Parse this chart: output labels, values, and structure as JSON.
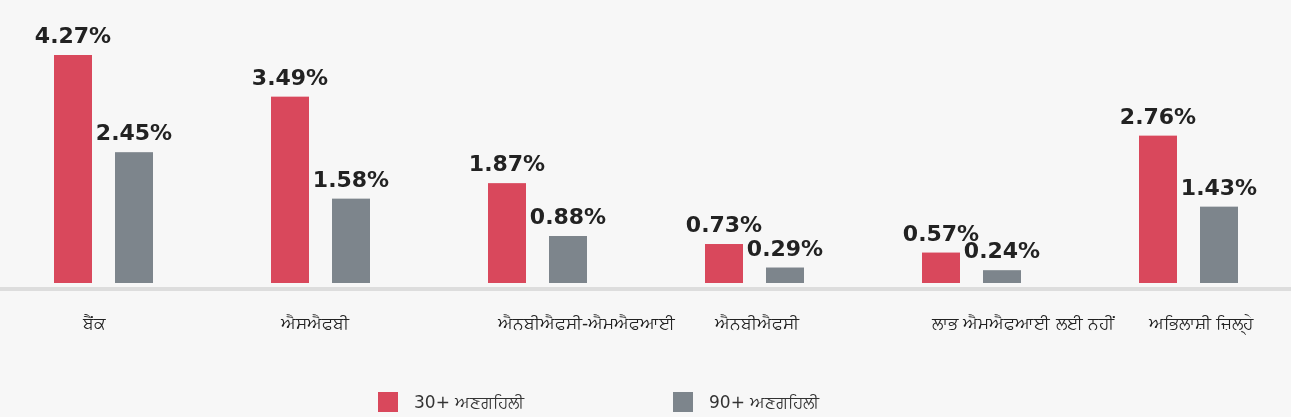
{
  "chart_data": {
    "type": "bar",
    "categories": [
      "ਬੈਂਕ",
      "ਐਸਐਫਬੀ",
      "ਐਨਬੀਐਫਸੀ-ਐਮਐਫਆਈ",
      "ਐਨਬੀਐਫਸੀ",
      "ਲਾਭ ਐਮਐਫਆਈ ਲਈ ਨਹੀਂ",
      "ਅਭਿਲਾਸ਼ੀ ਜ਼ਿਲ੍ਹੇ"
    ],
    "series": [
      {
        "name": "30+ ਅਣਗਹਿਲੀ",
        "color": "#d9485c",
        "values": [
          4.27,
          3.49,
          1.87,
          0.73,
          0.57,
          2.76
        ],
        "value_labels": [
          "4.27%",
          "3.49%",
          "1.87%",
          "0.73%",
          "0.57%",
          "2.76%"
        ]
      },
      {
        "name": "90+ ਅਣਗਹਿਲੀ",
        "color": "#7d858c",
        "values": [
          2.45,
          1.58,
          0.88,
          0.29,
          0.24,
          1.43
        ],
        "value_labels": [
          "2.45%",
          "1.58%",
          "0.88%",
          "0.29%",
          "0.24%",
          "1.43%"
        ]
      }
    ],
    "legend": "bottom"
  }
}
